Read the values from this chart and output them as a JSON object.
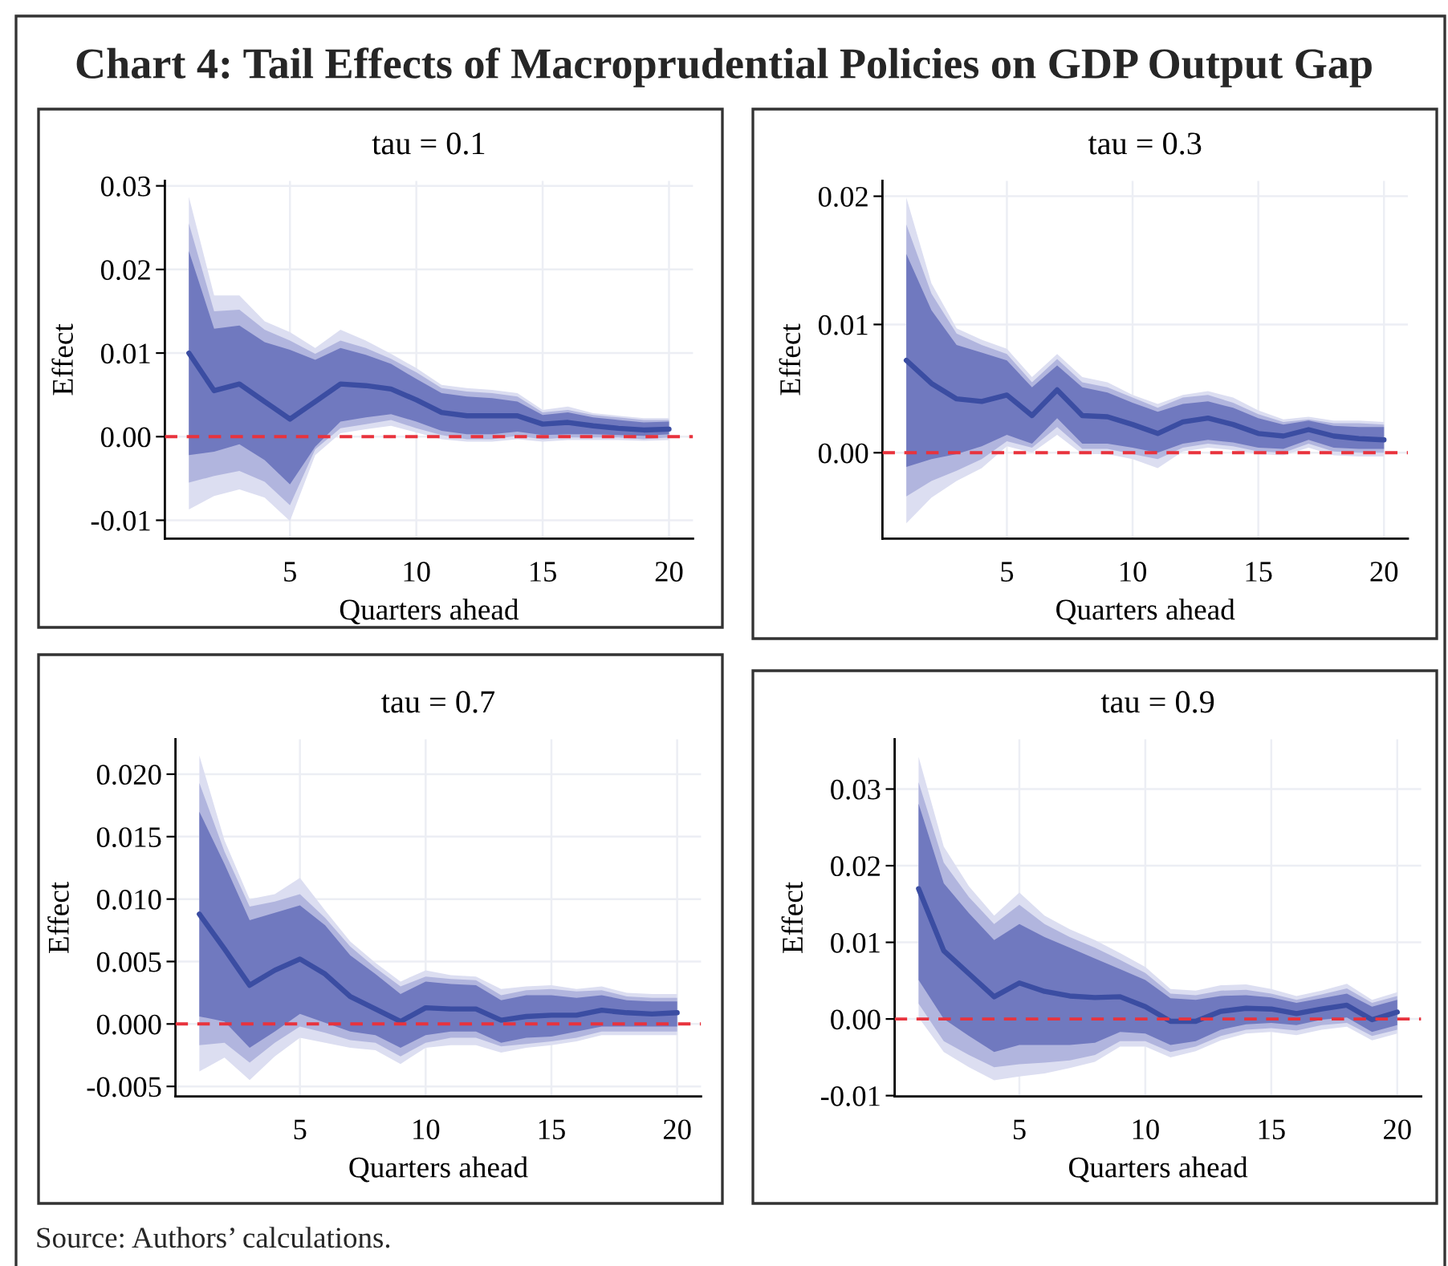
{
  "chart_data": [
    {
      "type": "other",
      "title": "Chart 4: Tail Effects of Macroprudential Policies on GDP Output Gap",
      "annotations": [
        "Source: Authors’ calculations."
      ]
    },
    {
      "type": "line",
      "title": "tau = 0.1",
      "xlabel": "Quarters ahead",
      "ylabel": "Effect",
      "x": [
        1,
        2,
        3,
        4,
        5,
        6,
        7,
        8,
        9,
        10,
        11,
        12,
        13,
        14,
        15,
        16,
        17,
        18,
        19,
        20
      ],
      "xlim": [
        0.05,
        20.95
      ],
      "xticks": [
        5,
        10,
        15,
        20
      ],
      "ylim": [
        -0.0122,
        0.0306
      ],
      "yticks": [
        {
          "value": -0.01,
          "label": "-0.01"
        },
        {
          "value": 0,
          "label": "0.00"
        },
        {
          "value": 0.01,
          "label": "0.01"
        },
        {
          "value": 0.02,
          "label": "0.02"
        },
        {
          "value": 0.03,
          "label": "0.03"
        }
      ],
      "grid": true,
      "ref_lines": [
        {
          "axis": "y",
          "value": 0,
          "color": "#e8333d",
          "line_style": "dashed"
        }
      ],
      "series": [
        {
          "color": "#dcdef1",
          "values": [
            null,
            null,
            null,
            null,
            null,
            null,
            null,
            null,
            null,
            null,
            null,
            null,
            null,
            null,
            null,
            null,
            null,
            null,
            null,
            null
          ],
          "lower": [
            -0.0087,
            -0.0071,
            -0.0063,
            -0.0073,
            -0.0101,
            -0.0022,
            0.0004,
            0.0009,
            0.0013,
            0.0005,
            -0.0003,
            -0.0006,
            -0.0006,
            -0.0003,
            -0.0006,
            -0.0004,
            -0.0004,
            -0.0004,
            -0.0005,
            -0.0004
          ],
          "upper": [
            0.0287,
            0.0169,
            0.0169,
            0.0138,
            0.0125,
            0.0106,
            0.0128,
            0.0115,
            0.0099,
            0.0082,
            0.0062,
            0.0058,
            0.0056,
            0.0052,
            0.0032,
            0.0036,
            0.0028,
            0.0025,
            0.0022,
            0.0022
          ]
        },
        {
          "color": "#b1b5de",
          "values": [
            null,
            null,
            null,
            null,
            null,
            null,
            null,
            null,
            null,
            null,
            null,
            null,
            null,
            null,
            null,
            null,
            null,
            null,
            null,
            null
          ],
          "lower": [
            -0.0055,
            -0.0047,
            -0.0041,
            -0.0054,
            -0.0082,
            -0.0015,
            0.001,
            0.0015,
            0.002,
            0.001,
            0.0002,
            -0.0003,
            -0.0003,
            0.0001,
            -0.0003,
            -0.0001,
            -0.0001,
            -0.0001,
            -0.0003,
            -0.0001
          ],
          "upper": [
            0.0255,
            0.015,
            0.0152,
            0.0128,
            0.0115,
            0.0099,
            0.0115,
            0.0106,
            0.0093,
            0.0077,
            0.0058,
            0.0054,
            0.0052,
            0.0048,
            0.0029,
            0.0032,
            0.0026,
            0.0023,
            0.002,
            0.002
          ]
        },
        {
          "color": "#7079bf",
          "values": [
            null,
            null,
            null,
            null,
            null,
            null,
            null,
            null,
            null,
            null,
            null,
            null,
            null,
            null,
            null,
            null,
            null,
            null,
            null,
            null
          ],
          "lower": [
            -0.0022,
            -0.0018,
            -0.0009,
            -0.0028,
            -0.0057,
            -0.0012,
            0.0018,
            0.0023,
            0.0027,
            0.0018,
            0.0007,
            0.0003,
            0.0003,
            0.0006,
            0.0002,
            0.0003,
            0.0003,
            0.0002,
            0.0001,
            0.0003
          ],
          "upper": [
            0.0222,
            0.0129,
            0.0133,
            0.0113,
            0.0104,
            0.0092,
            0.0106,
            0.0098,
            0.0087,
            0.0069,
            0.0052,
            0.0048,
            0.0046,
            0.0042,
            0.0026,
            0.0029,
            0.0023,
            0.002,
            0.0017,
            0.0018
          ]
        },
        {
          "color": "#3b4da2",
          "values": [
            0.01,
            0.0055,
            0.0063,
            0.0042,
            0.0021,
            0.0042,
            0.0063,
            0.0061,
            0.0057,
            0.0044,
            0.0029,
            0.0025,
            0.0025,
            0.0025,
            0.0015,
            0.0017,
            0.0013,
            0.001,
            0.0008,
            0.0009
          ]
        }
      ]
    },
    {
      "type": "line",
      "title": "tau = 0.3",
      "xlabel": "Quarters ahead",
      "ylabel": "Effect",
      "x": [
        1,
        2,
        3,
        4,
        5,
        6,
        7,
        8,
        9,
        10,
        11,
        12,
        13,
        14,
        15,
        16,
        17,
        18,
        19,
        20
      ],
      "xlim": [
        0.05,
        20.95
      ],
      "xticks": [
        5,
        10,
        15,
        20
      ],
      "ylim": [
        -0.0067,
        0.0212
      ],
      "yticks": [
        {
          "value": 0,
          "label": "0.00"
        },
        {
          "value": 0.01,
          "label": "0.01"
        },
        {
          "value": 0.02,
          "label": "0.02"
        }
      ],
      "grid": true,
      "ref_lines": [
        {
          "axis": "y",
          "value": 0,
          "color": "#e8333d",
          "line_style": "dashed"
        }
      ],
      "series": [
        {
          "color": "#dcdef1",
          "values": [
            null,
            null,
            null,
            null,
            null,
            null,
            null,
            null,
            null,
            null,
            null,
            null,
            null,
            null,
            null,
            null,
            null,
            null,
            null,
            null
          ],
          "lower": [
            -0.0055,
            -0.0035,
            -0.0022,
            -0.0012,
            0.0005,
            0.0,
            0.0014,
            -0.0001,
            -0.0001,
            -0.0005,
            -0.0012,
            0.0001,
            0.0004,
            0.0002,
            -0.0001,
            -0.0002,
            0.0004,
            -0.0002,
            -0.0003,
            -0.0003
          ],
          "upper": [
            0.0199,
            0.0132,
            0.0097,
            0.0088,
            0.0081,
            0.0059,
            0.0077,
            0.0059,
            0.0055,
            0.0045,
            0.0038,
            0.0045,
            0.0048,
            0.0043,
            0.0033,
            0.0026,
            0.0028,
            0.0025,
            0.0025,
            0.0024
          ]
        },
        {
          "color": "#b1b5de",
          "values": [
            null,
            null,
            null,
            null,
            null,
            null,
            null,
            null,
            null,
            null,
            null,
            null,
            null,
            null,
            null,
            null,
            null,
            null,
            null,
            null
          ],
          "lower": [
            -0.0034,
            -0.0022,
            -0.0014,
            -0.0005,
            0.0009,
            0.0004,
            0.002,
            0.0003,
            0.0003,
            -0.0001,
            -0.0005,
            0.0004,
            0.0007,
            0.0005,
            0.0001,
            0.0,
            0.0007,
            0.0001,
            0.0,
            0.0
          ],
          "upper": [
            0.0178,
            0.0124,
            0.0093,
            0.0084,
            0.0077,
            0.0055,
            0.0073,
            0.0055,
            0.0051,
            0.0043,
            0.0035,
            0.0043,
            0.0045,
            0.0039,
            0.003,
            0.0024,
            0.0026,
            0.0023,
            0.0023,
            0.0022
          ]
        },
        {
          "color": "#7079bf",
          "values": [
            null,
            null,
            null,
            null,
            null,
            null,
            null,
            null,
            null,
            null,
            null,
            null,
            null,
            null,
            null,
            null,
            null,
            null,
            null,
            null
          ],
          "lower": [
            -0.0011,
            -0.0005,
            -0.0001,
            0.0005,
            0.0014,
            0.0007,
            0.0027,
            0.0007,
            0.0007,
            0.0004,
            0.0,
            0.0007,
            0.001,
            0.0008,
            0.0004,
            0.0003,
            0.001,
            0.0004,
            0.0003,
            0.0003
          ],
          "upper": [
            0.0155,
            0.0111,
            0.0084,
            0.0078,
            0.0072,
            0.0051,
            0.0068,
            0.0051,
            0.0047,
            0.0039,
            0.0032,
            0.0038,
            0.004,
            0.0035,
            0.0027,
            0.0022,
            0.0025,
            0.0021,
            0.002,
            0.002
          ]
        },
        {
          "color": "#3b4da2",
          "values": [
            0.0072,
            0.0054,
            0.0042,
            0.004,
            0.0045,
            0.0029,
            0.0049,
            0.0029,
            0.0028,
            0.0022,
            0.0015,
            0.0024,
            0.0027,
            0.0022,
            0.0015,
            0.0013,
            0.0018,
            0.0013,
            0.0011,
            0.001
          ]
        }
      ]
    },
    {
      "type": "line",
      "title": "tau = 0.7",
      "xlabel": "Quarters ahead",
      "ylabel": "Effect",
      "x": [
        1,
        2,
        3,
        4,
        5,
        6,
        7,
        8,
        9,
        10,
        11,
        12,
        13,
        14,
        15,
        16,
        17,
        18,
        19,
        20
      ],
      "xlim": [
        0.05,
        20.95
      ],
      "xticks": [
        5,
        10,
        15,
        20
      ],
      "ylim": [
        -0.0058,
        0.0228
      ],
      "yticks": [
        {
          "value": -0.005,
          "label": "-0.005"
        },
        {
          "value": 0,
          "label": "0.000"
        },
        {
          "value": 0.005,
          "label": "0.005"
        },
        {
          "value": 0.01,
          "label": "0.010"
        },
        {
          "value": 0.015,
          "label": "0.015"
        },
        {
          "value": 0.02,
          "label": "0.020"
        }
      ],
      "grid": true,
      "ref_lines": [
        {
          "axis": "y",
          "value": 0,
          "color": "#e8333d",
          "line_style": "dashed"
        }
      ],
      "series": [
        {
          "color": "#dcdef1",
          "values": [
            null,
            null,
            null,
            null,
            null,
            null,
            null,
            null,
            null,
            null,
            null,
            null,
            null,
            null,
            null,
            null,
            null,
            null,
            null,
            null
          ],
          "lower": [
            -0.0038,
            -0.0027,
            -0.0045,
            -0.0026,
            -0.0011,
            -0.0015,
            -0.0019,
            -0.0021,
            -0.0032,
            -0.0019,
            -0.0017,
            -0.0017,
            -0.0023,
            -0.0019,
            -0.0017,
            -0.0014,
            -0.0009,
            -0.0009,
            -0.0009,
            -0.0009
          ],
          "upper": [
            0.0215,
            0.0147,
            0.01,
            0.0104,
            0.0117,
            0.0091,
            0.0066,
            0.0049,
            0.0034,
            0.0043,
            0.0039,
            0.0038,
            0.0028,
            0.003,
            0.0031,
            0.0028,
            0.003,
            0.0025,
            0.0024,
            0.0024
          ]
        },
        {
          "color": "#b1b5de",
          "values": [
            null,
            null,
            null,
            null,
            null,
            null,
            null,
            null,
            null,
            null,
            null,
            null,
            null,
            null,
            null,
            null,
            null,
            null,
            null,
            null
          ],
          "lower": [
            -0.0017,
            -0.0015,
            -0.0031,
            -0.0015,
            -0.0002,
            -0.0007,
            -0.0013,
            -0.0015,
            -0.0026,
            -0.0015,
            -0.0011,
            -0.0011,
            -0.0018,
            -0.0016,
            -0.0014,
            -0.0011,
            -0.0006,
            -0.0006,
            -0.0006,
            -0.0006
          ],
          "upper": [
            0.0193,
            0.0138,
            0.0094,
            0.0098,
            0.0104,
            0.0085,
            0.0062,
            0.0045,
            0.003,
            0.0038,
            0.0036,
            0.0035,
            0.0023,
            0.0027,
            0.0028,
            0.0026,
            0.0027,
            0.0022,
            0.0021,
            0.0021
          ]
        },
        {
          "color": "#7079bf",
          "values": [
            null,
            null,
            null,
            null,
            null,
            null,
            null,
            null,
            null,
            null,
            null,
            null,
            null,
            null,
            null,
            null,
            null,
            null,
            null,
            null
          ],
          "lower": [
            0.0006,
            0.0002,
            -0.0019,
            -0.0006,
            0.0008,
            0.0001,
            -0.0006,
            -0.0009,
            -0.0019,
            -0.0009,
            -0.0006,
            -0.0006,
            -0.0015,
            -0.0011,
            -0.001,
            -0.0006,
            -0.0002,
            -0.0002,
            -0.0002,
            -0.0002
          ],
          "upper": [
            0.017,
            0.0128,
            0.0083,
            0.0089,
            0.0095,
            0.0079,
            0.0055,
            0.004,
            0.0024,
            0.0034,
            0.0032,
            0.0031,
            0.0019,
            0.0023,
            0.0023,
            0.0021,
            0.0023,
            0.0019,
            0.0018,
            0.0018
          ]
        },
        {
          "color": "#3b4da2",
          "values": [
            0.0088,
            0.006,
            0.0031,
            0.0043,
            0.0052,
            0.004,
            0.0022,
            0.0012,
            0.0002,
            0.0013,
            0.0012,
            0.0012,
            0.0003,
            0.0006,
            0.0007,
            0.0007,
            0.0011,
            0.0009,
            0.0008,
            0.0009
          ]
        }
      ]
    },
    {
      "type": "line",
      "title": "tau = 0.9",
      "xlabel": "Quarters ahead",
      "ylabel": "Effect",
      "x": [
        1,
        2,
        3,
        4,
        5,
        6,
        7,
        8,
        9,
        10,
        11,
        12,
        13,
        14,
        15,
        16,
        17,
        18,
        19,
        20
      ],
      "xlim": [
        0.05,
        20.95
      ],
      "xticks": [
        5,
        10,
        15,
        20
      ],
      "ylim": [
        -0.0101,
        0.0365
      ],
      "yticks": [
        {
          "value": -0.01,
          "label": "-0.01"
        },
        {
          "value": 0,
          "label": "0.00"
        },
        {
          "value": 0.01,
          "label": "0.01"
        },
        {
          "value": 0.02,
          "label": "0.02"
        },
        {
          "value": 0.03,
          "label": "0.03"
        }
      ],
      "grid": true,
      "ref_lines": [
        {
          "axis": "y",
          "value": 0,
          "color": "#e8333d",
          "line_style": "dashed"
        }
      ],
      "series": [
        {
          "color": "#dcdef1",
          "values": [
            null,
            null,
            null,
            null,
            null,
            null,
            null,
            null,
            null,
            null,
            null,
            null,
            null,
            null,
            null,
            null,
            null,
            null,
            null,
            null
          ],
          "lower": [
            0.0002,
            -0.0043,
            -0.0063,
            -0.008,
            -0.0075,
            -0.0071,
            -0.0064,
            -0.0056,
            -0.0036,
            -0.0036,
            -0.005,
            -0.0042,
            -0.0028,
            -0.0019,
            -0.0017,
            -0.0021,
            -0.0014,
            -0.001,
            -0.0028,
            -0.0019
          ],
          "upper": [
            0.0342,
            0.0225,
            0.0173,
            0.0135,
            0.0165,
            0.0135,
            0.0117,
            0.0103,
            0.0086,
            0.0068,
            0.0039,
            0.0037,
            0.0044,
            0.0045,
            0.0039,
            0.003,
            0.0037,
            0.0046,
            0.0025,
            0.0035
          ]
        },
        {
          "color": "#b1b5de",
          "values": [
            null,
            null,
            null,
            null,
            null,
            null,
            null,
            null,
            null,
            null,
            null,
            null,
            null,
            null,
            null,
            null,
            null,
            null,
            null,
            null
          ],
          "lower": [
            0.002,
            -0.0029,
            -0.0047,
            -0.0063,
            -0.0059,
            -0.0057,
            -0.0054,
            -0.0047,
            -0.0029,
            -0.0029,
            -0.0043,
            -0.0036,
            -0.0022,
            -0.0014,
            -0.0012,
            -0.0015,
            -0.0008,
            -0.0005,
            -0.0022,
            -0.0014
          ],
          "upper": [
            0.0309,
            0.0204,
            0.0159,
            0.0124,
            0.0149,
            0.0124,
            0.0107,
            0.0093,
            0.0077,
            0.006,
            0.0033,
            0.0031,
            0.0037,
            0.0038,
            0.0033,
            0.0025,
            0.0032,
            0.004,
            0.0021,
            0.003
          ]
        },
        {
          "color": "#7079bf",
          "values": [
            null,
            null,
            null,
            null,
            null,
            null,
            null,
            null,
            null,
            null,
            null,
            null,
            null,
            null,
            null,
            null,
            null,
            null,
            null,
            null
          ],
          "lower": [
            0.0051,
            0.0,
            -0.0022,
            -0.0043,
            -0.0034,
            -0.0034,
            -0.0034,
            -0.0031,
            -0.0017,
            -0.0019,
            -0.0034,
            -0.0029,
            -0.0014,
            -0.0007,
            -0.0005,
            -0.0008,
            -0.0001,
            0.0002,
            -0.0017,
            -0.0008
          ],
          "upper": [
            0.0281,
            0.0177,
            0.0138,
            0.0103,
            0.0124,
            0.0107,
            0.0093,
            0.0079,
            0.0065,
            0.0051,
            0.0027,
            0.0025,
            0.003,
            0.0031,
            0.0028,
            0.0021,
            0.0027,
            0.0033,
            0.0016,
            0.0025
          ]
        },
        {
          "color": "#3b4da2",
          "values": [
            0.017,
            0.0089,
            0.0059,
            0.0029,
            0.0047,
            0.0036,
            0.003,
            0.0028,
            0.0029,
            0.0016,
            -0.0003,
            -0.0003,
            0.001,
            0.0014,
            0.0013,
            0.0007,
            0.0013,
            0.0018,
            -0.0001,
            0.0009
          ]
        }
      ]
    }
  ]
}
